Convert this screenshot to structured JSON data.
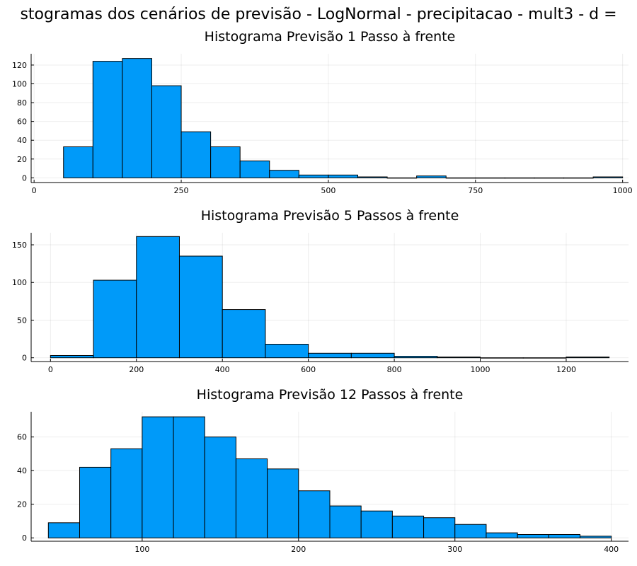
{
  "figure_title": "stogramas dos cenários de previsão - LogNormal - precipitacao - mult3 - d =",
  "colors": {
    "bar_fill": "#009AF9",
    "bar_stroke": "#000000"
  },
  "chart_data": [
    {
      "type": "bar",
      "title": "Histograma Previsão 1 Passo à frente",
      "xlabel": "",
      "ylabel": "",
      "xlim": [
        -5,
        1010
      ],
      "ylim": [
        -5,
        132
      ],
      "xticks": [
        0,
        250,
        500,
        750,
        1000
      ],
      "yticks": [
        0,
        20,
        40,
        60,
        80,
        100,
        120
      ],
      "grid": true,
      "bins": [
        {
          "x0": 50,
          "x1": 100,
          "count": 33
        },
        {
          "x0": 100,
          "x1": 150,
          "count": 124
        },
        {
          "x0": 150,
          "x1": 200,
          "count": 127
        },
        {
          "x0": 200,
          "x1": 250,
          "count": 98
        },
        {
          "x0": 250,
          "x1": 300,
          "count": 49
        },
        {
          "x0": 300,
          "x1": 350,
          "count": 33
        },
        {
          "x0": 350,
          "x1": 400,
          "count": 18
        },
        {
          "x0": 400,
          "x1": 450,
          "count": 8
        },
        {
          "x0": 450,
          "x1": 500,
          "count": 3
        },
        {
          "x0": 500,
          "x1": 550,
          "count": 3
        },
        {
          "x0": 550,
          "x1": 600,
          "count": 1
        },
        {
          "x0": 600,
          "x1": 650,
          "count": 0
        },
        {
          "x0": 650,
          "x1": 700,
          "count": 2
        },
        {
          "x0": 700,
          "x1": 750,
          "count": 0
        },
        {
          "x0": 750,
          "x1": 800,
          "count": 0
        },
        {
          "x0": 800,
          "x1": 850,
          "count": 0
        },
        {
          "x0": 850,
          "x1": 900,
          "count": 0
        },
        {
          "x0": 900,
          "x1": 950,
          "count": 0
        },
        {
          "x0": 950,
          "x1": 1000,
          "count": 1
        }
      ]
    },
    {
      "type": "bar",
      "title": "Histograma Previsão 5 Passos à frente",
      "xlabel": "",
      "ylabel": "",
      "xlim": [
        -45,
        1345
      ],
      "ylim": [
        -5,
        166
      ],
      "xticks": [
        0,
        200,
        400,
        600,
        800,
        1000,
        1200
      ],
      "yticks": [
        0,
        50,
        100,
        150
      ],
      "grid": true,
      "bins": [
        {
          "x0": 0,
          "x1": 100,
          "count": 3
        },
        {
          "x0": 100,
          "x1": 200,
          "count": 103
        },
        {
          "x0": 200,
          "x1": 300,
          "count": 161
        },
        {
          "x0": 300,
          "x1": 400,
          "count": 135
        },
        {
          "x0": 400,
          "x1": 500,
          "count": 64
        },
        {
          "x0": 500,
          "x1": 600,
          "count": 18
        },
        {
          "x0": 600,
          "x1": 700,
          "count": 6
        },
        {
          "x0": 700,
          "x1": 800,
          "count": 6
        },
        {
          "x0": 800,
          "x1": 900,
          "count": 2
        },
        {
          "x0": 900,
          "x1": 1000,
          "count": 1
        },
        {
          "x0": 1000,
          "x1": 1100,
          "count": 0
        },
        {
          "x0": 1100,
          "x1": 1200,
          "count": 0
        },
        {
          "x0": 1200,
          "x1": 1300,
          "count": 1
        }
      ]
    },
    {
      "type": "bar",
      "title": "Histograma Previsão 12 Passos à frente",
      "xlabel": "",
      "ylabel": "",
      "xlim": [
        29,
        411
      ],
      "ylim": [
        -2,
        75
      ],
      "xticks": [
        100,
        200,
        300,
        400
      ],
      "yticks": [
        0,
        20,
        40,
        60
      ],
      "grid": true,
      "bins": [
        {
          "x0": 40,
          "x1": 60,
          "count": 9
        },
        {
          "x0": 60,
          "x1": 80,
          "count": 42
        },
        {
          "x0": 80,
          "x1": 100,
          "count": 53
        },
        {
          "x0": 100,
          "x1": 120,
          "count": 72
        },
        {
          "x0": 120,
          "x1": 140,
          "count": 72
        },
        {
          "x0": 140,
          "x1": 160,
          "count": 60
        },
        {
          "x0": 160,
          "x1": 180,
          "count": 47
        },
        {
          "x0": 180,
          "x1": 200,
          "count": 41
        },
        {
          "x0": 200,
          "x1": 220,
          "count": 28
        },
        {
          "x0": 220,
          "x1": 240,
          "count": 19
        },
        {
          "x0": 240,
          "x1": 260,
          "count": 16
        },
        {
          "x0": 260,
          "x1": 280,
          "count": 13
        },
        {
          "x0": 280,
          "x1": 300,
          "count": 12
        },
        {
          "x0": 300,
          "x1": 320,
          "count": 8
        },
        {
          "x0": 320,
          "x1": 340,
          "count": 3
        },
        {
          "x0": 340,
          "x1": 360,
          "count": 2
        },
        {
          "x0": 360,
          "x1": 380,
          "count": 2
        },
        {
          "x0": 380,
          "x1": 400,
          "count": 1
        }
      ]
    }
  ]
}
